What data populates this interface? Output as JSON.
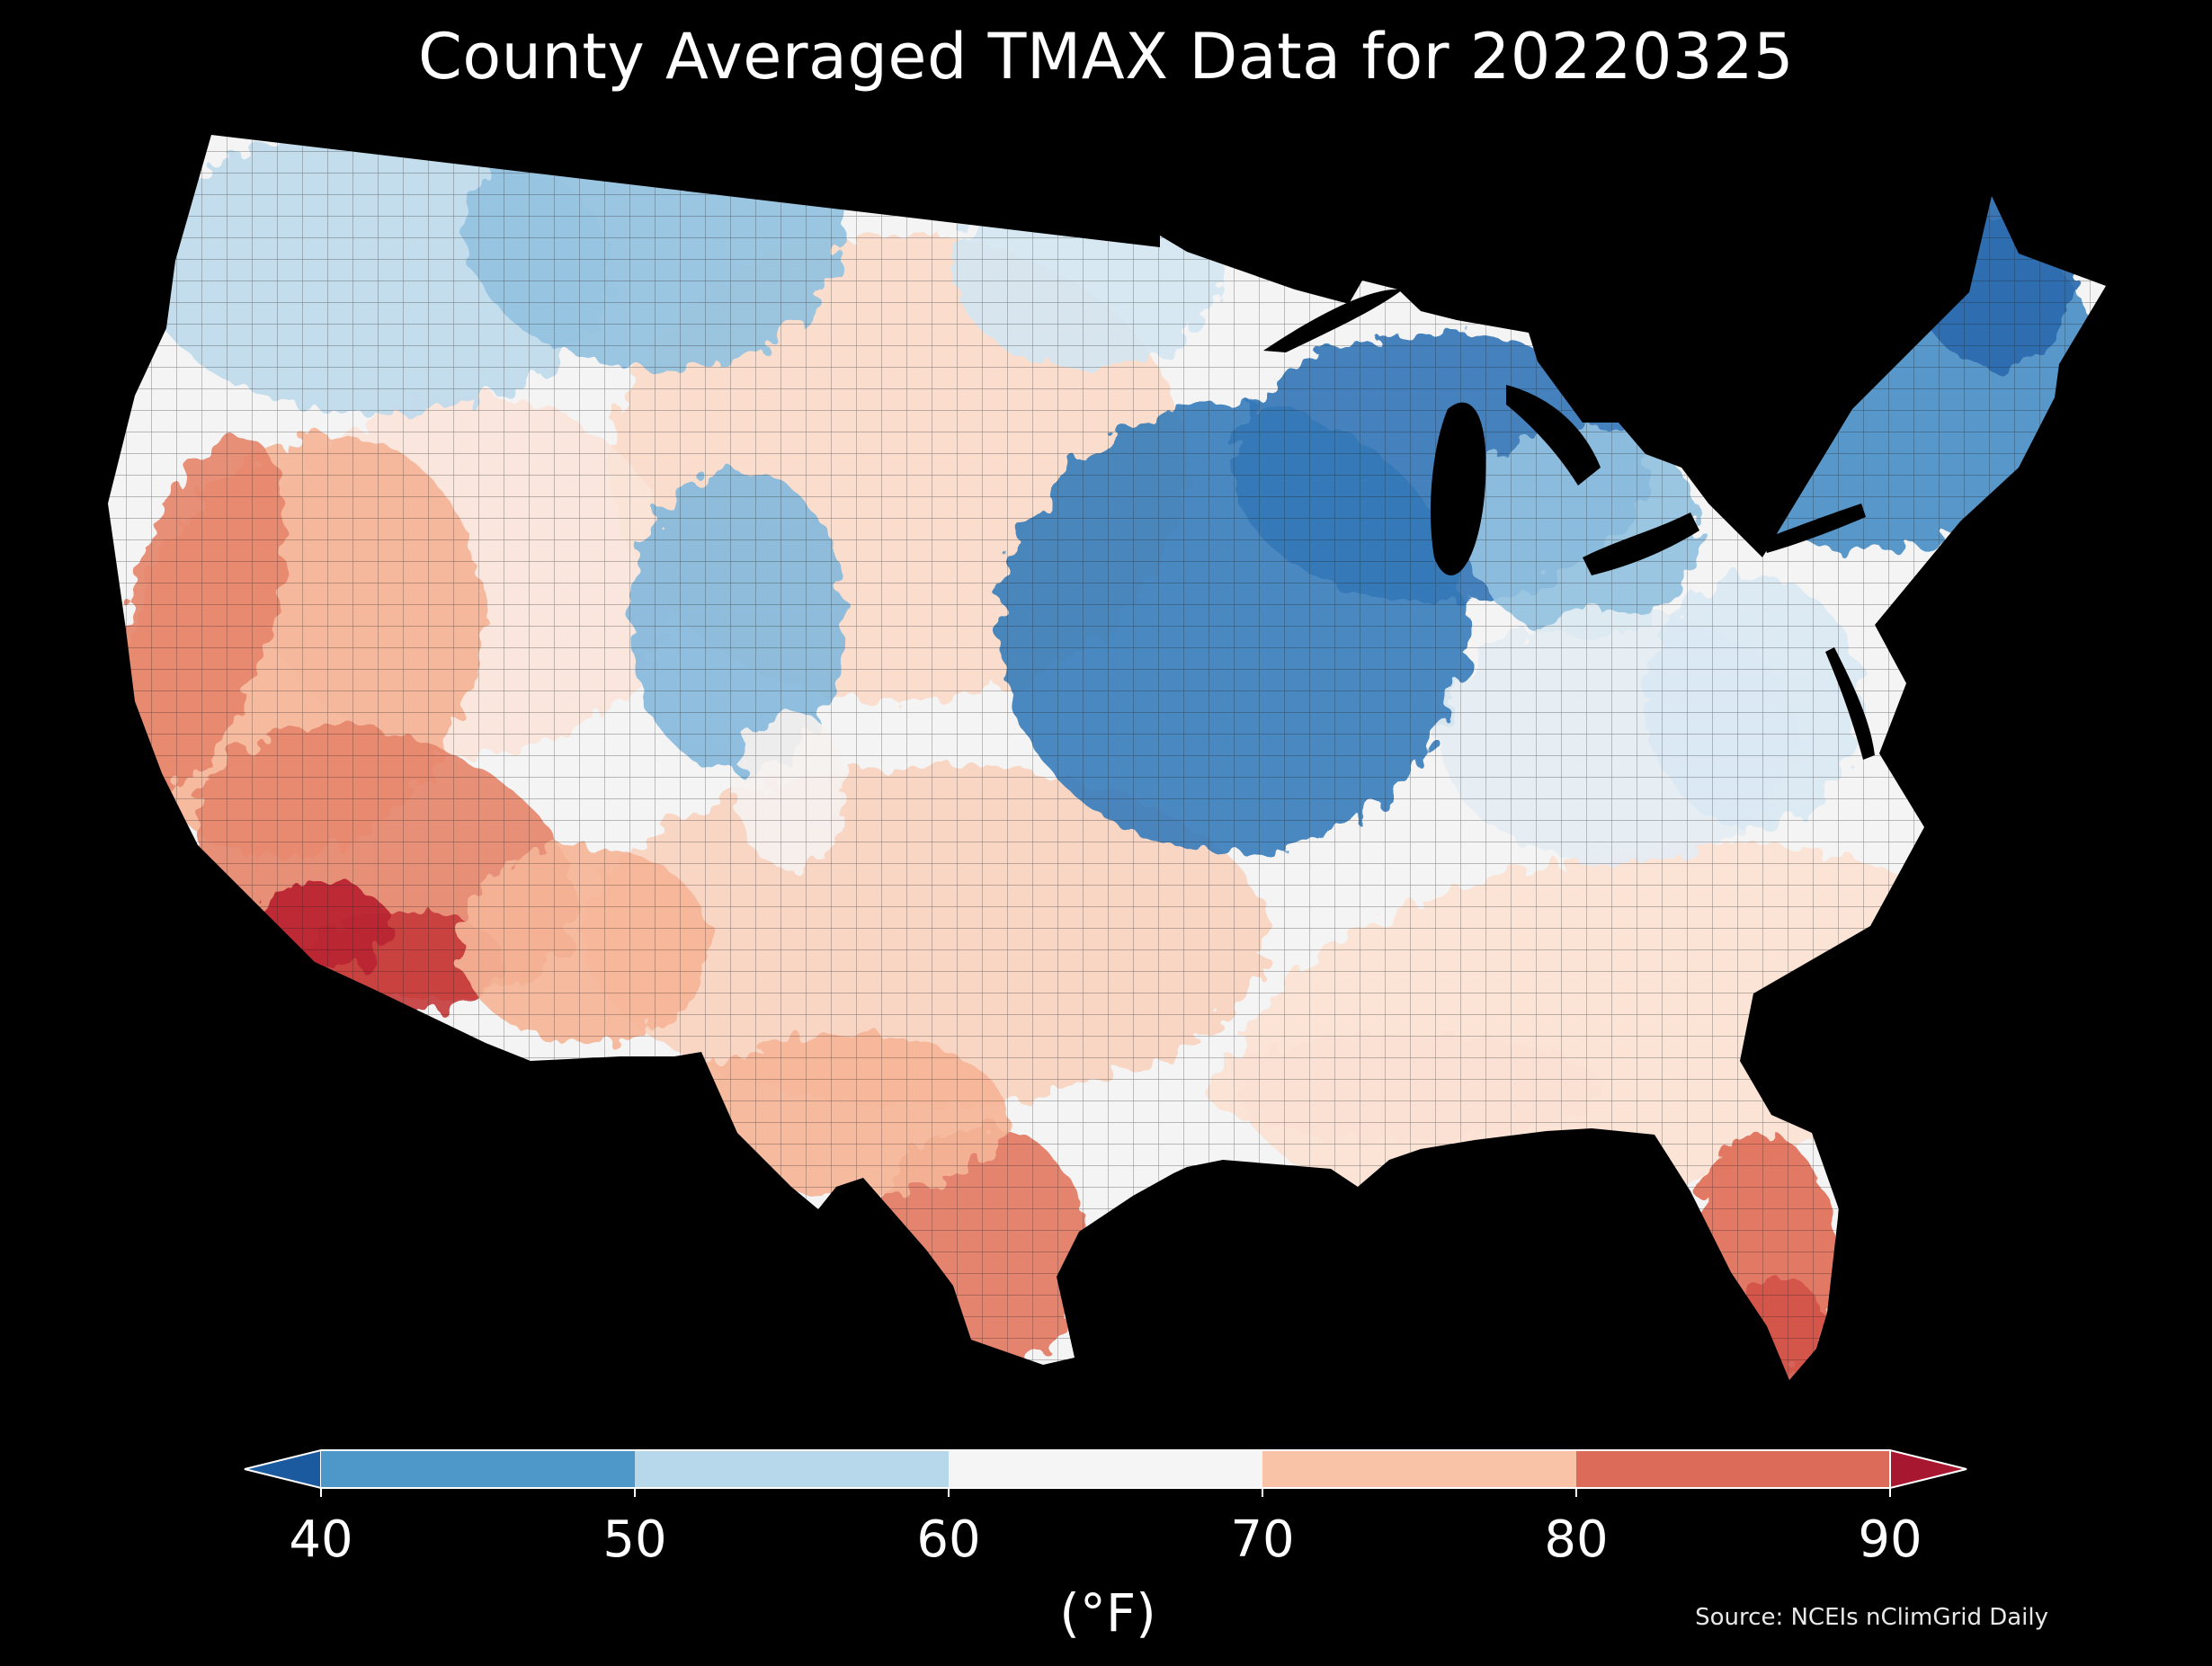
{
  "title": "County Averaged TMAX Data for 20220325",
  "source": "Source: NCEIs nClimGrid Daily",
  "colorbar": {
    "unit": "(°F)",
    "ticks": [
      "40",
      "50",
      "60",
      "70",
      "80",
      "90"
    ],
    "bins": [
      {
        "range": [
          40,
          50
        ],
        "color": "#4d98c8"
      },
      {
        "range": [
          50,
          60
        ],
        "color": "#b7d7ea"
      },
      {
        "range": [
          60,
          70
        ],
        "color": "#f5f5f5"
      },
      {
        "range": [
          70,
          80
        ],
        "color": "#f8c3a6"
      },
      {
        "range": [
          80,
          90
        ],
        "color": "#dc6b5a"
      }
    ],
    "under_color": "#1c5aa0",
    "over_color": "#a71830",
    "extend": "both"
  },
  "map": {
    "region": "Contiguous United States",
    "background": "#000000",
    "regional_tmax_f": [
      {
        "region": "Northeast / Maine",
        "tmax": 42
      },
      {
        "region": "Upper Midwest (Iowa / Wisconsin / Illinois)",
        "tmax": 43
      },
      {
        "region": "Great Lakes / Michigan",
        "tmax": 46
      },
      {
        "region": "Northern Rockies (Montana / Idaho)",
        "tmax": 54
      },
      {
        "region": "Utah / Colorado Rockies",
        "tmax": 52
      },
      {
        "region": "Pacific Northwest",
        "tmax": 60
      },
      {
        "region": "Ohio Valley / Mid-Atlantic",
        "tmax": 62
      },
      {
        "region": "Southeast / Carolinas / Georgia",
        "tmax": 71
      },
      {
        "region": "Great Plains (Kansas / Oklahoma)",
        "tmax": 71
      },
      {
        "region": "California Central Valley",
        "tmax": 80
      },
      {
        "region": "Southern Arizona / Lower Colorado",
        "tmax": 86
      },
      {
        "region": "South Texas",
        "tmax": 80
      },
      {
        "region": "South Florida",
        "tmax": 82
      }
    ]
  }
}
